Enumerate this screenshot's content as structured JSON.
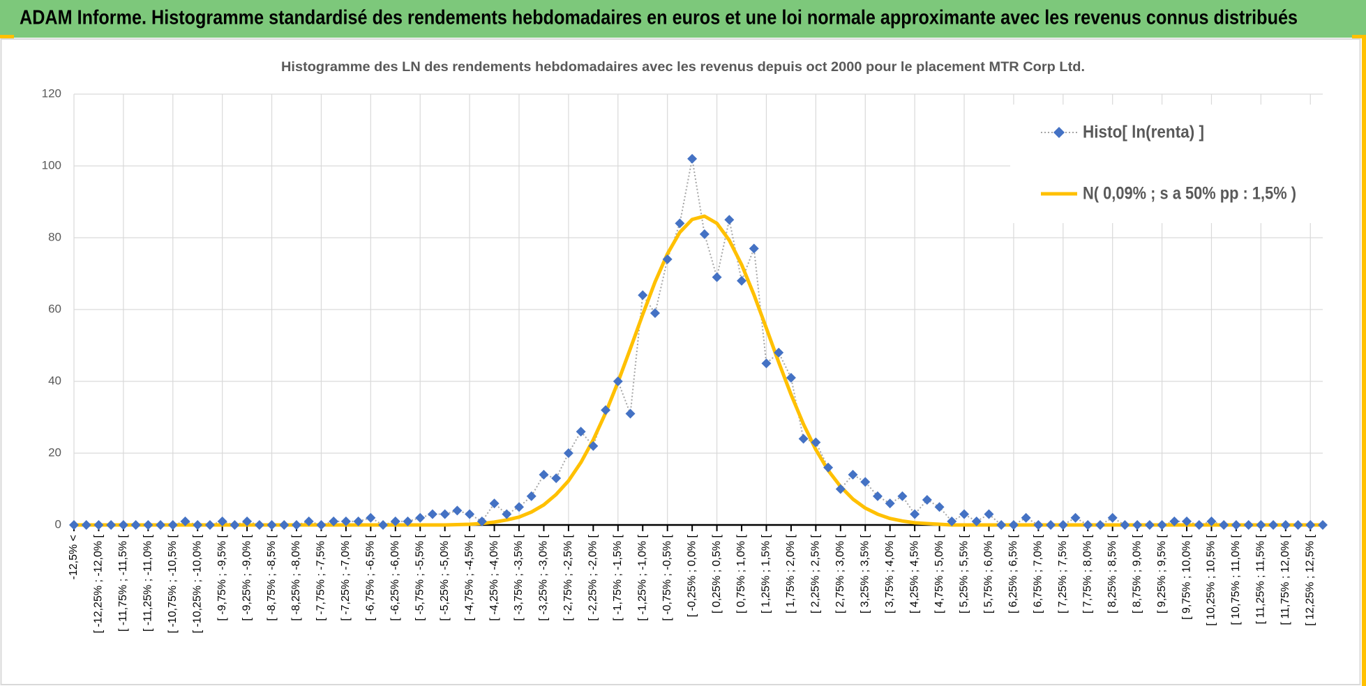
{
  "header": {
    "title": "ADAM Informe. Histogramme standardisé des rendements hebdomadaires en euros et une loi normale approximante avec les revenus connus distribués"
  },
  "chart_data": {
    "type": "line",
    "title": "Histogramme des LN des rendements hebdomadaires avec les revenus depuis oct 2000 pour le placement MTR Corp Ltd.",
    "categories": [
      "-12,5% <",
      null,
      "[ -12,25% ; -12,0% [",
      null,
      "[ -11,75% ; -11,5% [",
      null,
      "[ -11,25% ; -11,0% [",
      null,
      "[ -10,75% ; -10,5% [",
      null,
      "[ -10,25% ; -10,0% [",
      null,
      "[ -9,75% ; -9,5% [",
      null,
      "[ -9,25% ; -9,0% [",
      null,
      "[ -8,75% ; -8,5% [",
      null,
      "[ -8,25% ; -8,0% [",
      null,
      "[ -7,75% ; -7,5% [",
      null,
      "[ -7,25% ; -7,0% [",
      null,
      "[ -6,75% ; -6,5% [",
      null,
      "[ -6,25% ; -6,0% [",
      null,
      "[ -5,75% ; -5,5% [",
      null,
      "[ -5,25% ; -5,0% [",
      null,
      "[ -4,75% ; -4,5% [",
      null,
      "[ -4,25% ; -4,0% [",
      null,
      "[ -3,75% ; -3,5% [",
      null,
      "[ -3,25% ; -3,0% [",
      null,
      "[ -2,75% ; -2,5% [",
      null,
      "[ -2,25% ; -2,0% [",
      null,
      "[ -1,75% ; -1,5% [",
      null,
      "[ -1,25% ; -1,0% [",
      null,
      "[ -0,75% ; -0,5% [",
      null,
      "[ -0,25% ; 0,0% [",
      null,
      "[ 0,25% ; 0,5% [",
      null,
      "[ 0,75% ; 1,0% [",
      null,
      "[ 1,25% ; 1,5% [",
      null,
      "[ 1,75% ; 2,0% [",
      null,
      "[ 2,25% ; 2,5% [",
      null,
      "[ 2,75% ; 3,0% [",
      null,
      "[ 3,25% ; 3,5% [",
      null,
      "[ 3,75% ; 4,0% [",
      null,
      "[ 4,25% ; 4,5% [",
      null,
      "[ 4,75% ; 5,0% [",
      null,
      "[ 5,25% ; 5,5% [",
      null,
      "[ 5,75% ; 6,0% [",
      null,
      "[ 6,25% ; 6,5% [",
      null,
      "[ 6,75% ; 7,0% [",
      null,
      "[ 7,25% ; 7,5% [",
      null,
      "[ 7,75% ; 8,0% [",
      null,
      "[ 8,25% ; 8,5% [",
      null,
      "[ 8,75% ; 9,0% [",
      null,
      "[ 9,25% ; 9,5% [",
      null,
      "[ 9,75% ; 10,0% [",
      null,
      "[ 10,25% ; 10,5% [",
      null,
      "[ 10,75% ; 11,0% [",
      null,
      "[ 11,25% ; 11,5% [",
      null,
      "[ 11,75% ; 12,0% [",
      null,
      "[ 12,25% ; 12,5% [",
      null
    ],
    "series": [
      {
        "name": "Histo[ ln(renta) ]",
        "color": "#4472c4",
        "line_color": "#a5a5a5",
        "values": [
          0,
          0,
          0,
          0,
          0,
          0,
          0,
          0,
          0,
          1,
          0,
          0,
          1,
          0,
          1,
          0,
          0,
          0,
          0,
          1,
          0,
          1,
          1,
          1,
          2,
          0,
          1,
          1,
          2,
          3,
          3,
          4,
          3,
          1,
          6,
          3,
          5,
          8,
          14,
          13,
          20,
          26,
          22,
          32,
          40,
          31,
          64,
          59,
          74,
          84,
          102,
          81,
          69,
          85,
          68,
          77,
          45,
          48,
          41,
          24,
          23,
          16,
          10,
          14,
          12,
          8,
          6,
          8,
          3,
          7,
          5,
          1,
          3,
          1,
          3,
          0,
          0,
          2,
          0,
          0,
          0,
          2,
          0,
          0,
          2,
          0,
          0,
          0,
          0,
          1,
          1,
          0,
          1,
          0,
          0,
          0,
          0,
          0,
          0,
          0,
          0,
          0
        ]
      },
      {
        "name": "N( 0,09% ; s a 50% pp : 1,5% )",
        "color": "#ffc000",
        "values": [
          0,
          0,
          0,
          0,
          0,
          0,
          0,
          0,
          0,
          0,
          0,
          0,
          0,
          0,
          0,
          0,
          0,
          0,
          0,
          0,
          0,
          0,
          0,
          0,
          0,
          0,
          0,
          0,
          0,
          0,
          0,
          0.1,
          0.2,
          0.4,
          0.8,
          1.4,
          2.2,
          3.6,
          5.6,
          8.5,
          12.3,
          17.4,
          23.7,
          31.2,
          39.8,
          49.1,
          58.6,
          67.7,
          75.5,
          81.5,
          85.1,
          86,
          84,
          79.3,
          72.5,
          64.1,
          54.8,
          45.3,
          36.3,
          28.1,
          21,
          15.2,
          10.7,
          7.2,
          4.7,
          3,
          1.8,
          1.1,
          0.6,
          0.4,
          0.2,
          0,
          0,
          0,
          0,
          0,
          0,
          0,
          0,
          0,
          0,
          0,
          0,
          0,
          0,
          0,
          0,
          0,
          0,
          0,
          0,
          0,
          0,
          0,
          0,
          0,
          0,
          0,
          0,
          0,
          0,
          0
        ]
      }
    ],
    "ylim": [
      0,
      120
    ],
    "yticks": [
      0,
      20,
      40,
      60,
      80,
      100,
      120
    ],
    "grid": true,
    "legend": "upper right"
  }
}
